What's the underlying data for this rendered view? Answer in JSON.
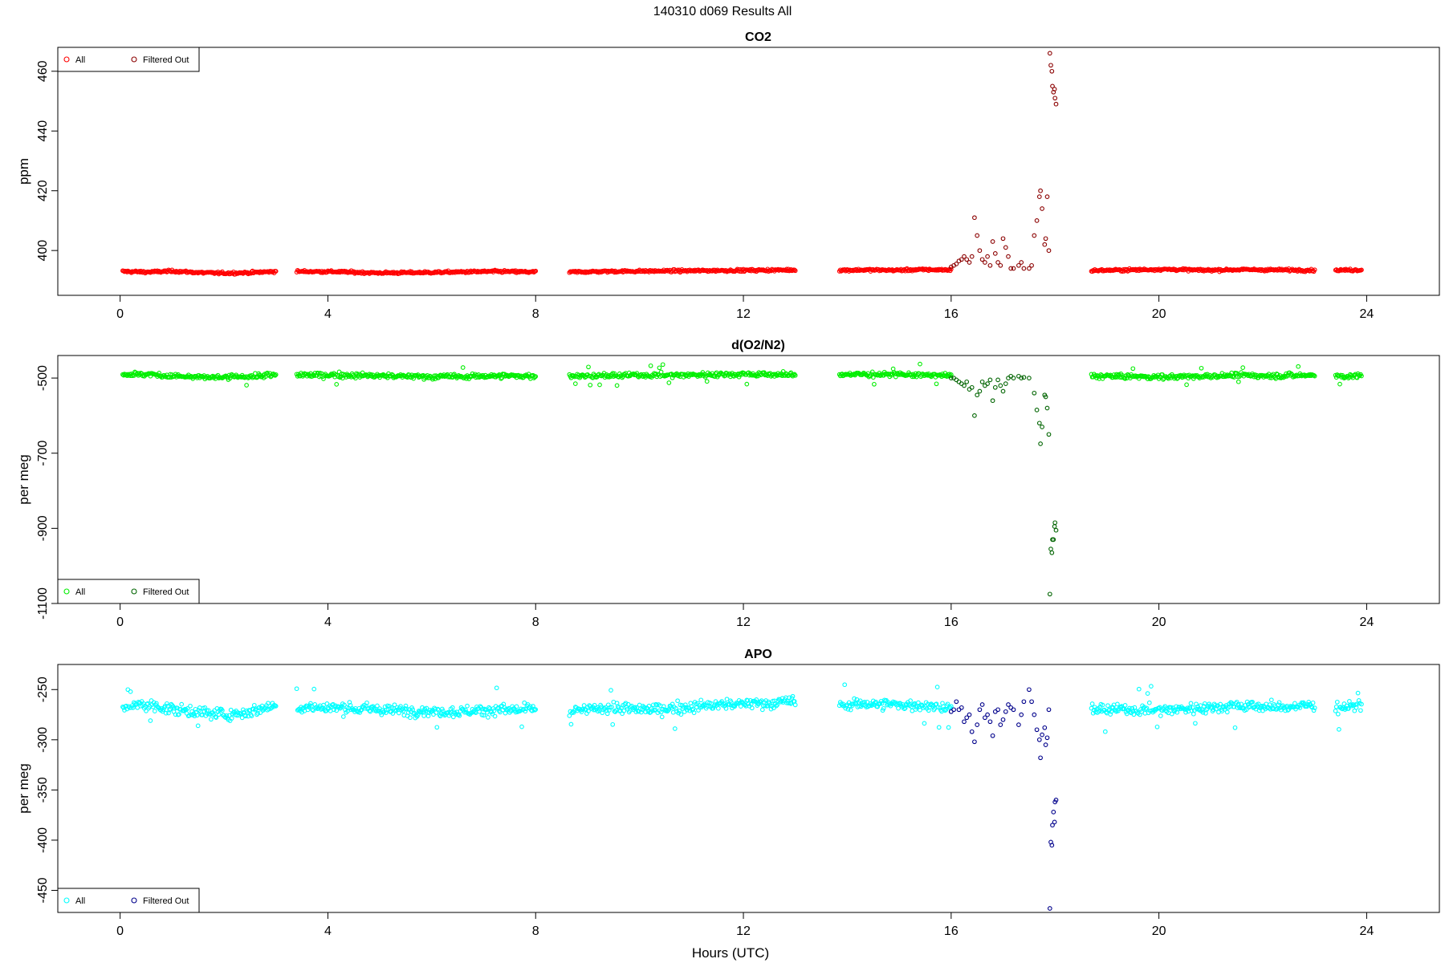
{
  "figure": {
    "title": "140310   d069   Results All",
    "xlabel": "Hours (UTC)"
  },
  "colors": {
    "co2_all": "#ff0000",
    "co2_filtered": "#8b0000",
    "o2_all": "#00ee00",
    "o2_filtered": "#006400",
    "apo_all": "#00ffff",
    "apo_filtered": "#00008b"
  },
  "chart_data": [
    {
      "type": "scatter",
      "title": "CO2",
      "xlabel": "",
      "ylabel": "ppm",
      "xlim": [
        -1.2,
        25.4
      ],
      "ylim": [
        385,
        468
      ],
      "xticks": [
        0,
        4,
        8,
        12,
        16,
        20,
        24
      ],
      "yticks": [
        400,
        420,
        440,
        460
      ],
      "grid": false,
      "legend_position": "top-left",
      "legend": [
        "All",
        "Filtered Out"
      ],
      "segments": [
        {
          "x_start": 0.05,
          "x_end": 3.0,
          "baseline": [
            393,
            392.8,
            393.1,
            392.6,
            392.4,
            392.6,
            393.0
          ]
        },
        {
          "x_start": 3.4,
          "x_end": 8.0,
          "baseline": [
            393.0,
            392.9,
            392.5,
            392.6,
            392.8,
            393.0,
            392.8
          ]
        },
        {
          "x_start": 8.65,
          "x_end": 13.0,
          "baseline": [
            392.8,
            393.0,
            393.1,
            393.2,
            393.3,
            393.4,
            393.5
          ]
        },
        {
          "x_start": 13.85,
          "x_end": 16.0,
          "baseline": [
            393.4,
            393.5,
            393.4,
            393.6,
            393.5
          ]
        },
        {
          "x_start": 18.7,
          "x_end": 23.0,
          "baseline": [
            393.3,
            393.5,
            393.7,
            393.4,
            393.6,
            393.5,
            393.4
          ]
        },
        {
          "x_start": 23.4,
          "x_end": 23.9,
          "baseline": [
            393.4,
            393.5
          ]
        }
      ],
      "noise": 0.35,
      "outlier_points": [
        [
          16.0,
          394.5
        ],
        [
          16.05,
          395.0
        ],
        [
          16.1,
          395.5
        ],
        [
          16.15,
          396.5
        ],
        [
          16.2,
          397.0
        ],
        [
          16.25,
          398.0
        ],
        [
          16.3,
          397.0
        ],
        [
          16.35,
          396.0
        ],
        [
          16.4,
          398.0
        ],
        [
          16.45,
          411.0
        ],
        [
          16.5,
          405.0
        ],
        [
          16.55,
          400.0
        ],
        [
          16.6,
          397.0
        ],
        [
          16.65,
          396.0
        ],
        [
          16.7,
          398.0
        ],
        [
          16.75,
          395.0
        ],
        [
          16.8,
          403.0
        ],
        [
          16.85,
          399.0
        ],
        [
          16.9,
          396.0
        ],
        [
          16.95,
          395.0
        ],
        [
          17.0,
          404.0
        ],
        [
          17.05,
          401.0
        ],
        [
          17.1,
          398.0
        ],
        [
          17.15,
          394.0
        ],
        [
          17.2,
          394.0
        ],
        [
          17.3,
          395.0
        ],
        [
          17.35,
          396.0
        ],
        [
          17.4,
          394.0
        ],
        [
          17.5,
          394.0
        ],
        [
          17.55,
          395.0
        ],
        [
          17.6,
          405.0
        ],
        [
          17.65,
          410.0
        ],
        [
          17.7,
          418.0
        ],
        [
          17.72,
          420.0
        ],
        [
          17.75,
          414.0
        ],
        [
          17.8,
          402.0
        ],
        [
          17.82,
          404.0
        ],
        [
          17.85,
          418.0
        ],
        [
          17.88,
          400.0
        ],
        [
          17.9,
          466.0
        ],
        [
          17.92,
          462.0
        ],
        [
          17.94,
          460.0
        ],
        [
          17.95,
          455.0
        ],
        [
          17.97,
          453.0
        ],
        [
          17.99,
          454.0
        ],
        [
          18.0,
          451.0
        ],
        [
          18.02,
          449.0
        ]
      ]
    },
    {
      "type": "scatter",
      "title": "d(O2/N2)",
      "xlabel": "",
      "ylabel": "per meg",
      "xlim": [
        -1.2,
        25.4
      ],
      "ylim": [
        -1100,
        -440
      ],
      "xticks": [
        0,
        4,
        8,
        12,
        16,
        20,
        24
      ],
      "yticks": [
        -500,
        -700,
        -900,
        -1100
      ],
      "grid": false,
      "legend_position": "bottom-left",
      "legend": [
        "All",
        "Filtered Out"
      ],
      "segments": [
        {
          "x_start": 0.05,
          "x_end": 3.0,
          "baseline": [
            -490,
            -490,
            -495,
            -498,
            -498,
            -495,
            -492
          ]
        },
        {
          "x_start": 3.4,
          "x_end": 8.0,
          "baseline": [
            -492,
            -492,
            -494,
            -496,
            -496,
            -494,
            -495
          ]
        },
        {
          "x_start": 8.65,
          "x_end": 13.0,
          "baseline": [
            -494,
            -494,
            -492,
            -492,
            -490,
            -490,
            -492
          ]
        },
        {
          "x_start": 13.85,
          "x_end": 16.0,
          "baseline": [
            -490,
            -490,
            -491,
            -492,
            -494
          ]
        },
        {
          "x_start": 18.7,
          "x_end": 23.0,
          "baseline": [
            -494,
            -496,
            -497,
            -495,
            -493,
            -494,
            -492
          ]
        },
        {
          "x_start": 23.4,
          "x_end": 23.9,
          "baseline": [
            -495,
            -495
          ]
        }
      ],
      "noise": 6,
      "outlier_points": [
        [
          16.0,
          -500
        ],
        [
          16.05,
          -500
        ],
        [
          16.1,
          -505
        ],
        [
          16.15,
          -510
        ],
        [
          16.2,
          -515
        ],
        [
          16.25,
          -520
        ],
        [
          16.3,
          -510
        ],
        [
          16.35,
          -530
        ],
        [
          16.4,
          -525
        ],
        [
          16.45,
          -600
        ],
        [
          16.5,
          -545
        ],
        [
          16.55,
          -535
        ],
        [
          16.6,
          -510
        ],
        [
          16.65,
          -520
        ],
        [
          16.7,
          -515
        ],
        [
          16.75,
          -505
        ],
        [
          16.8,
          -560
        ],
        [
          16.85,
          -525
        ],
        [
          16.9,
          -505
        ],
        [
          16.95,
          -520
        ],
        [
          17.0,
          -535
        ],
        [
          17.05,
          -515
        ],
        [
          17.1,
          -500
        ],
        [
          17.15,
          -495
        ],
        [
          17.2,
          -500
        ],
        [
          17.3,
          -495
        ],
        [
          17.35,
          -500
        ],
        [
          17.4,
          -498
        ],
        [
          17.5,
          -500
        ],
        [
          17.6,
          -540
        ],
        [
          17.65,
          -585
        ],
        [
          17.7,
          -620
        ],
        [
          17.72,
          -675
        ],
        [
          17.75,
          -630
        ],
        [
          17.8,
          -545
        ],
        [
          17.82,
          -550
        ],
        [
          17.85,
          -580
        ],
        [
          17.88,
          -650
        ],
        [
          17.9,
          -1075
        ],
        [
          17.92,
          -955
        ],
        [
          17.94,
          -965
        ],
        [
          17.95,
          -930
        ],
        [
          17.97,
          -930
        ],
        [
          17.99,
          -895
        ],
        [
          18.0,
          -885
        ],
        [
          18.02,
          -905
        ]
      ]
    },
    {
      "type": "scatter",
      "title": "APO",
      "xlabel": "Hours (UTC)",
      "ylabel": "per meg",
      "xlim": [
        -1.2,
        25.4
      ],
      "ylim": [
        -472,
        -225
      ],
      "xticks": [
        0,
        4,
        8,
        12,
        16,
        20,
        24
      ],
      "yticks": [
        -250,
        -300,
        -350,
        -400,
        -450
      ],
      "grid": false,
      "legend_position": "bottom-left",
      "legend": [
        "All",
        "Filtered Out"
      ],
      "segments": [
        {
          "x_start": 0.05,
          "x_end": 3.0,
          "baseline": [
            -268,
            -265,
            -270,
            -272,
            -275,
            -272,
            -265
          ]
        },
        {
          "x_start": 3.4,
          "x_end": 8.0,
          "baseline": [
            -268,
            -268,
            -270,
            -271,
            -272,
            -270,
            -270
          ]
        },
        {
          "x_start": 8.65,
          "x_end": 13.0,
          "baseline": [
            -272,
            -268,
            -270,
            -268,
            -265,
            -264,
            -262
          ]
        },
        {
          "x_start": 13.85,
          "x_end": 16.0,
          "baseline": [
            -265,
            -264,
            -265,
            -266,
            -268
          ]
        },
        {
          "x_start": 18.7,
          "x_end": 23.0,
          "baseline": [
            -270,
            -270,
            -270,
            -268,
            -266,
            -268,
            -265
          ]
        },
        {
          "x_start": 23.4,
          "x_end": 23.9,
          "baseline": [
            -268,
            -266
          ]
        }
      ],
      "noise": 5,
      "outlier_points": [
        [
          16.0,
          -272
        ],
        [
          16.05,
          -270
        ],
        [
          16.1,
          -262
        ],
        [
          16.15,
          -270
        ],
        [
          16.2,
          -268
        ],
        [
          16.25,
          -282
        ],
        [
          16.3,
          -278
        ],
        [
          16.35,
          -275
        ],
        [
          16.4,
          -292
        ],
        [
          16.45,
          -302
        ],
        [
          16.5,
          -285
        ],
        [
          16.55,
          -270
        ],
        [
          16.6,
          -265
        ],
        [
          16.65,
          -278
        ],
        [
          16.7,
          -275
        ],
        [
          16.75,
          -282
        ],
        [
          16.8,
          -296
        ],
        [
          16.85,
          -272
        ],
        [
          16.9,
          -270
        ],
        [
          16.95,
          -285
        ],
        [
          17.0,
          -280
        ],
        [
          17.05,
          -272
        ],
        [
          17.1,
          -265
        ],
        [
          17.15,
          -268
        ],
        [
          17.2,
          -270
        ],
        [
          17.3,
          -285
        ],
        [
          17.35,
          -275
        ],
        [
          17.4,
          -262
        ],
        [
          17.5,
          -250
        ],
        [
          17.55,
          -262
        ],
        [
          17.6,
          -275
        ],
        [
          17.65,
          -290
        ],
        [
          17.7,
          -300
        ],
        [
          17.72,
          -318
        ],
        [
          17.75,
          -295
        ],
        [
          17.8,
          -288
        ],
        [
          17.82,
          -305
        ],
        [
          17.85,
          -298
        ],
        [
          17.88,
          -270
        ],
        [
          17.9,
          -468
        ],
        [
          17.92,
          -402
        ],
        [
          17.94,
          -405
        ],
        [
          17.95,
          -385
        ],
        [
          17.97,
          -372
        ],
        [
          17.99,
          -382
        ],
        [
          18.0,
          -362
        ],
        [
          18.02,
          -360
        ]
      ]
    }
  ]
}
